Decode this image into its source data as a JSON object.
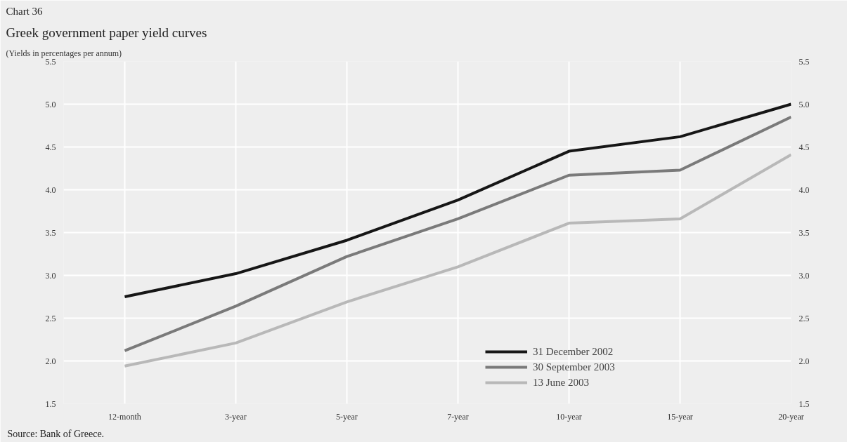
{
  "chart_data": {
    "type": "line",
    "title": "Greek government paper yield curves",
    "subtitle": "(Yields in percentages per annum)",
    "annotations": [
      "Chart 36",
      "Source: Bank of Greece."
    ],
    "categories": [
      "12-month",
      "3-year",
      "5-year",
      "7-year",
      "10-year",
      "15-year",
      "20-year"
    ],
    "series": [
      {
        "name": "31 December 2002",
        "color": "#161616",
        "values": [
          2.75,
          3.02,
          3.41,
          3.88,
          4.45,
          4.62,
          5.0
        ]
      },
      {
        "name": "30 September 2003",
        "color": "#7a7a7a",
        "values": [
          2.12,
          2.64,
          3.22,
          3.66,
          4.17,
          4.23,
          4.85
        ]
      },
      {
        "name": "13 June 2003",
        "color": "#b8b8b8",
        "values": [
          1.94,
          2.21,
          2.69,
          3.1,
          3.61,
          3.66,
          4.41
        ]
      }
    ],
    "ylim": [
      1.5,
      5.5
    ],
    "yticks": [
      {
        "value": 1.5,
        "label": "1.5"
      },
      {
        "value": 2,
        "label": "2.0"
      },
      {
        "value": 2.5,
        "label": "2.5"
      },
      {
        "value": 3,
        "label": "3.0"
      },
      {
        "value": 3.5,
        "label": "3.5"
      },
      {
        "value": 4,
        "label": "4.0"
      },
      {
        "value": 4.5,
        "label": "4.5"
      },
      {
        "value": 5,
        "label": "5.0"
      },
      {
        "value": 5.5,
        "label": "5.5"
      }
    ],
    "y2lim": [
      1.5,
      5.5
    ],
    "y2ticks": [
      {
        "value": 1.5,
        "label": "1.5"
      },
      {
        "value": 2,
        "label": "2.0"
      },
      {
        "value": 2.5,
        "label": "2.5"
      },
      {
        "value": 3,
        "label": "3.0"
      },
      {
        "value": 3.5,
        "label": "3.5"
      },
      {
        "value": 4,
        "label": "4.0"
      },
      {
        "value": 4.5,
        "label": "4.5"
      },
      {
        "value": 5,
        "label": "5.0"
      },
      {
        "value": 5.5,
        "label": "5.5"
      }
    ],
    "grid": true,
    "legend": "bottom right",
    "line_style": "solid"
  }
}
